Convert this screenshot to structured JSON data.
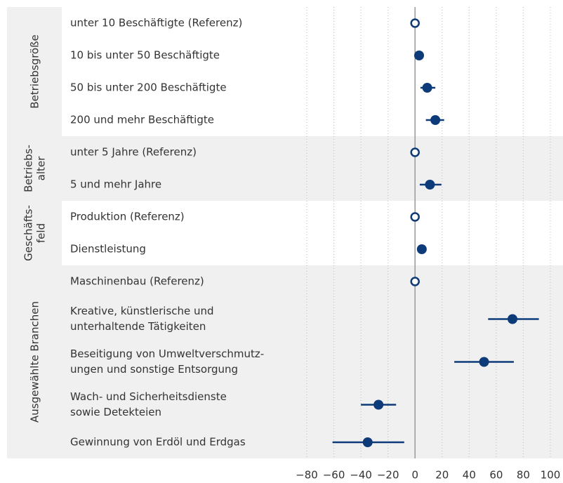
{
  "chart_data": {
    "type": "dot",
    "color": "#0d3a78",
    "xlim": [
      -80,
      100
    ],
    "xticks": [
      {
        "value": -80,
        "label": "−80"
      },
      {
        "value": -60,
        "label": "−60"
      },
      {
        "value": -40,
        "label": "−40"
      },
      {
        "value": -20,
        "label": "−20"
      },
      0,
      20,
      40,
      60,
      80,
      100
    ],
    "grid": true,
    "groups": [
      {
        "name": [
          "Betriebsgröße"
        ],
        "categories": [
          [
            "unter 10 Beschäftigte (Referenz)"
          ],
          [
            "10 bis unter 50 Beschäftigte"
          ],
          [
            "50 bis unter 200 Beschäftigte"
          ],
          [
            "200 und mehr Beschäftigte"
          ]
        ],
        "values": [
          0,
          3,
          9,
          15
        ],
        "ci_low": [
          null,
          0.5,
          4,
          8
        ],
        "ci_high": [
          null,
          5.5,
          15,
          21.5
        ]
      },
      {
        "name": [
          "Betriebs-",
          "alter"
        ],
        "categories": [
          [
            "unter 5 Jahre (Referenz)"
          ],
          [
            "5 und mehr Jahre"
          ]
        ],
        "values": [
          0,
          11
        ],
        "ci_low": [
          null,
          3.5
        ],
        "ci_high": [
          null,
          19.5
        ]
      },
      {
        "name": [
          "Geschäfts-",
          "feld"
        ],
        "categories": [
          [
            "Produktion (Referenz)"
          ],
          [
            "Dienstleistung"
          ]
        ],
        "values": [
          0,
          5
        ],
        "ci_low": [
          null,
          3
        ],
        "ci_high": [
          null,
          6
        ]
      },
      {
        "name": [
          "Ausgewählte Branchen"
        ],
        "categories": [
          [
            "Maschinenbau (Referenz)"
          ],
          [
            "Kreative, künstlerische und",
            "unterhaltende Tätigkeiten"
          ],
          [
            "Beseitigung von Umweltverschmutz-",
            "ungen und sonstige Entsorgung"
          ],
          [
            "Wach- und Sicherheitsdienste",
            "sowie Detekteien"
          ],
          [
            "Gewinnung von Erdöl und Erdgas"
          ]
        ],
        "values": [
          0,
          72,
          51,
          -27,
          -35
        ],
        "ci_low": [
          null,
          54,
          29,
          -40,
          -61
        ],
        "ci_high": [
          null,
          91.5,
          73,
          -14,
          -8
        ]
      }
    ]
  }
}
